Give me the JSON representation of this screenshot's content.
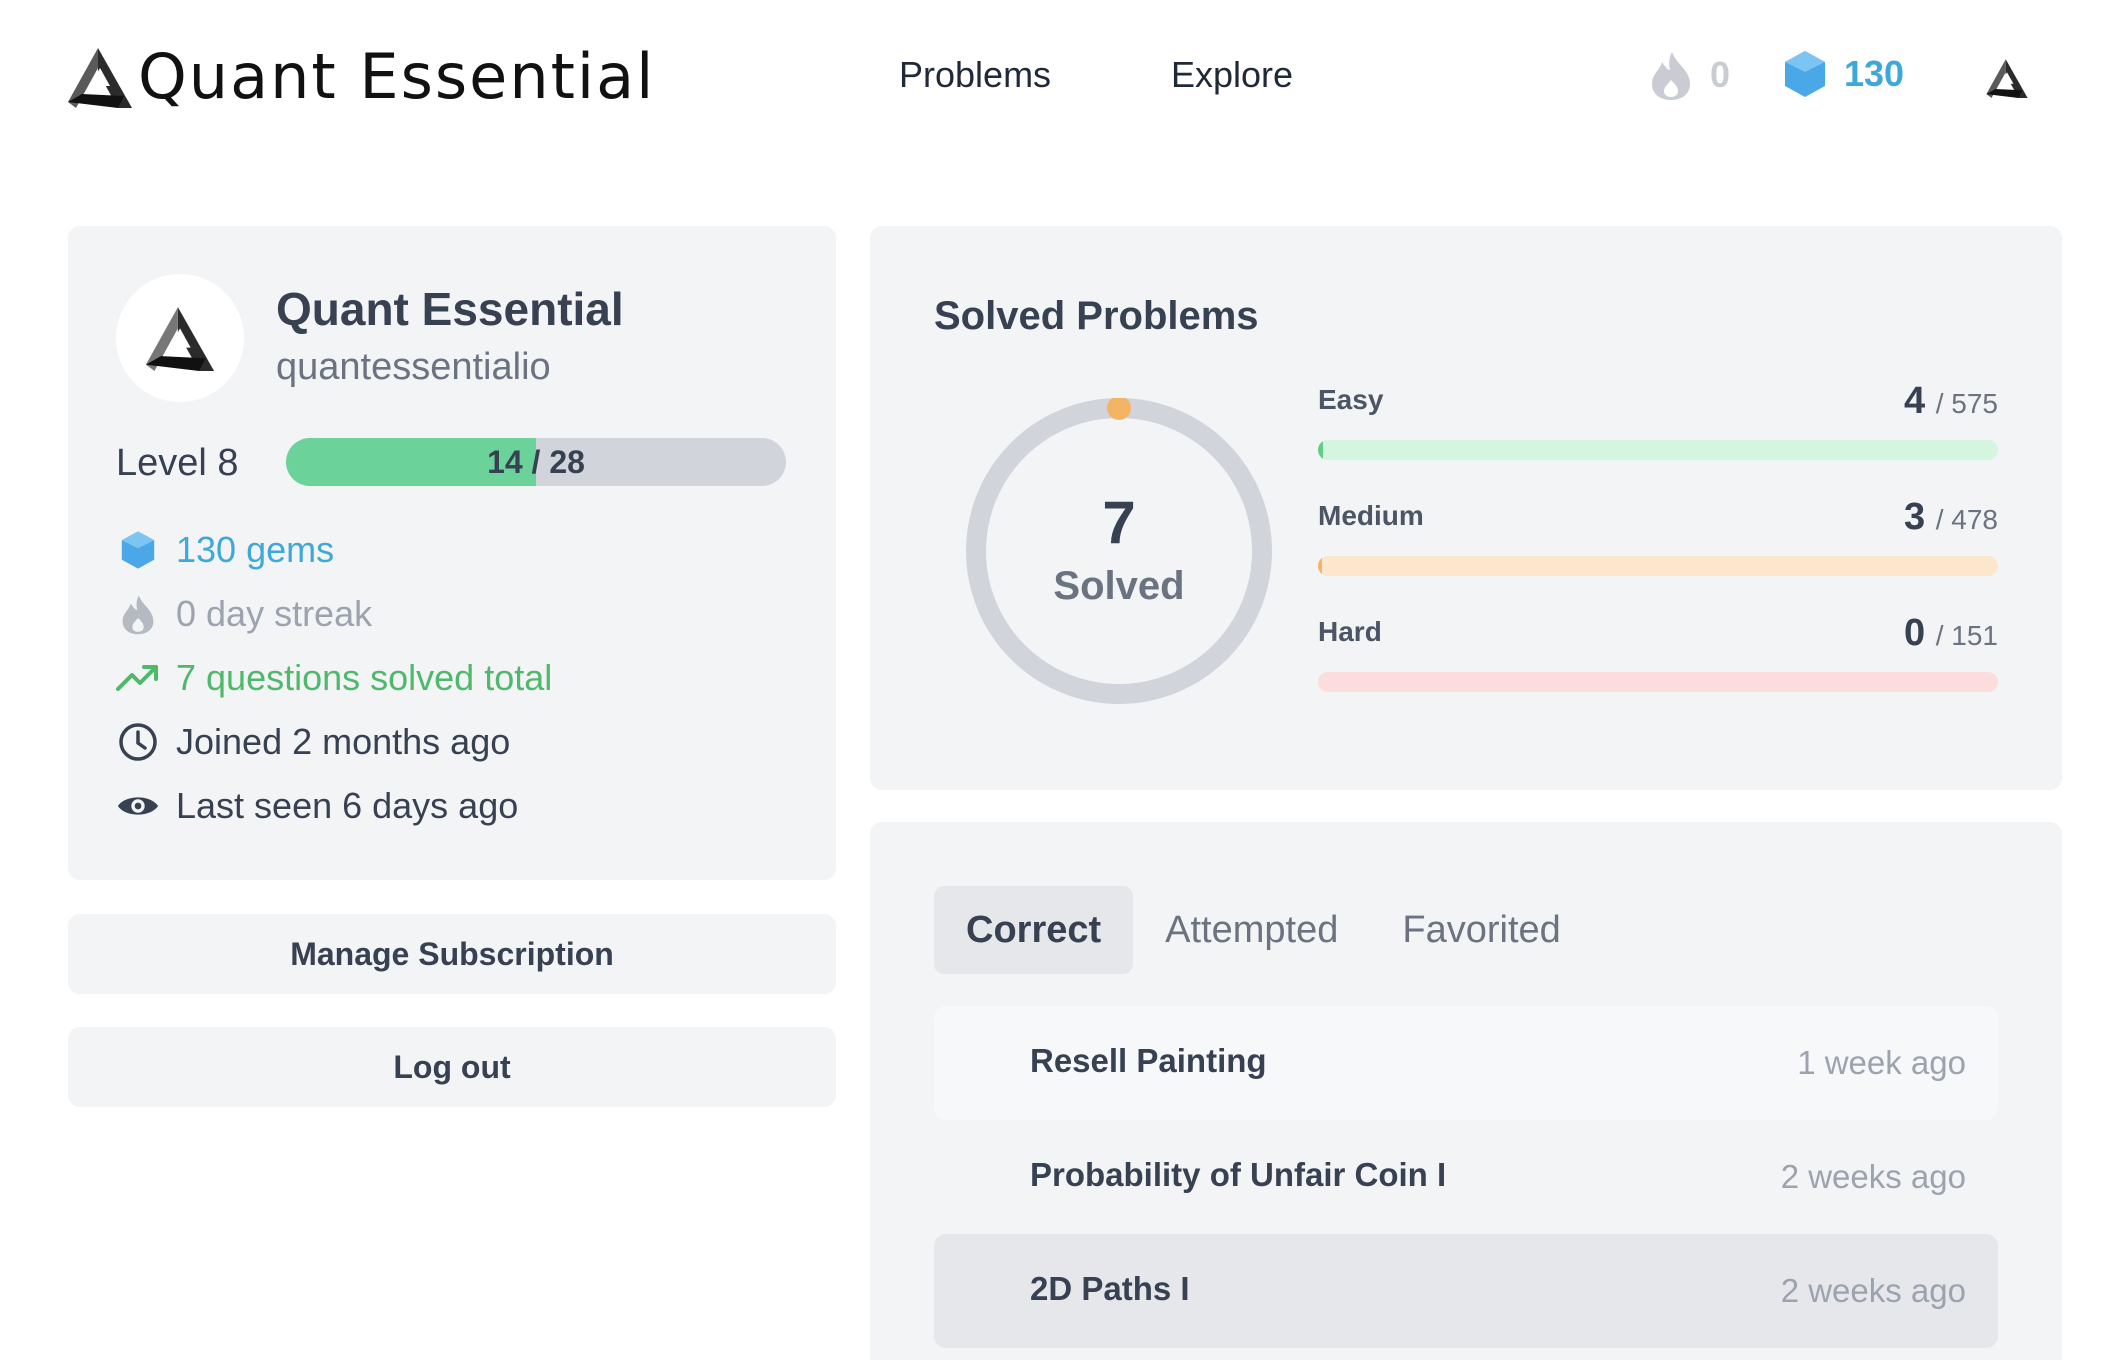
{
  "nav": {
    "brand": "Quant Essential",
    "links": [
      "Problems",
      "Explore"
    ],
    "streak": "0",
    "gems": "130",
    "brand_color": "#111111",
    "gem_color": "#3ea8d8"
  },
  "profile": {
    "display_name": "Quant Essential",
    "username": "quantessentialio",
    "level_label": "Level 8",
    "level_progress_text": "14 / 28",
    "level_progress": 0.5,
    "stats": {
      "gems": "130 gems",
      "streak": "0 day streak",
      "solved_total": "7 questions solved total",
      "joined": "Joined 2 months ago",
      "last_seen": "Last seen 6 days ago"
    }
  },
  "buttons": {
    "manage_subscription": "Manage Subscription",
    "logout": "Log out"
  },
  "solved": {
    "title": "Solved Problems",
    "count": "7",
    "count_label": "Solved",
    "difficulties": [
      {
        "name": "Easy",
        "solved": "4",
        "total": "/ 575",
        "fraction": 0.007,
        "track": "#d4f5e0",
        "fill": "#5fcf86"
      },
      {
        "name": "Medium",
        "solved": "3",
        "total": "/ 478",
        "fraction": 0.006,
        "track": "#fde7cc",
        "fill": "#f4b466"
      },
      {
        "name": "Hard",
        "solved": "0",
        "total": "/ 151",
        "fraction": 0.0,
        "track": "#fcdcdc",
        "fill": "#f08080"
      }
    ]
  },
  "tabs": [
    "Correct",
    "Attempted",
    "Favorited"
  ],
  "problems": [
    {
      "title": "Resell Painting",
      "time": "1 week ago"
    },
    {
      "title": "Probability of Unfair Coin I",
      "time": "2 weeks ago"
    },
    {
      "title": "2D Paths I",
      "time": "2 weeks ago"
    }
  ]
}
